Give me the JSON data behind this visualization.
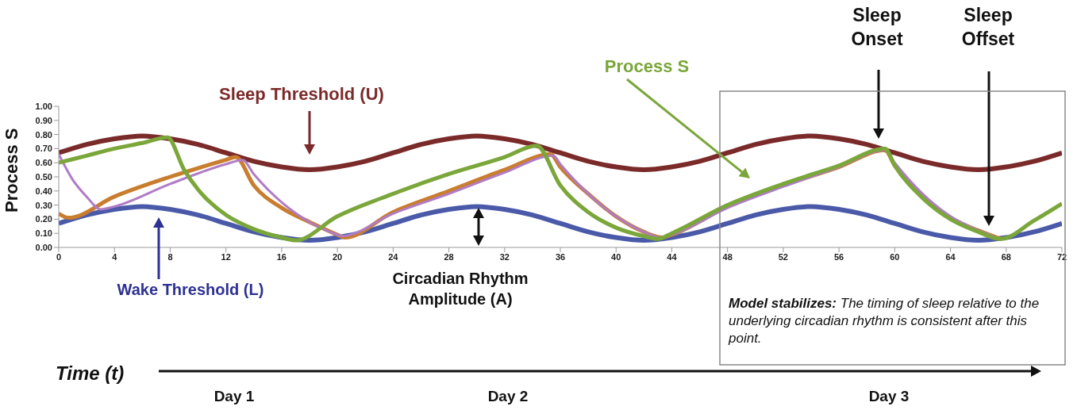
{
  "chart_data": {
    "type": "line",
    "ylabel": "Process S",
    "x": [
      0,
      2,
      4,
      6,
      8,
      10,
      12,
      14,
      16,
      18,
      20,
      22,
      24,
      26,
      28,
      30,
      32,
      34,
      36,
      38,
      40,
      42,
      44,
      46,
      48,
      50,
      52,
      54,
      56,
      58,
      60,
      62,
      64,
      66,
      68,
      70,
      72
    ],
    "series": [
      {
        "color": "#7b2a2a",
        "values": [
          0.67,
          0.73,
          0.77,
          0.79,
          0.77,
          0.73,
          0.67,
          0.61,
          0.57,
          0.55,
          0.57,
          0.61,
          0.67,
          0.73,
          0.77,
          0.79,
          0.77,
          0.73,
          0.67,
          0.61,
          0.57,
          0.55,
          0.57,
          0.61,
          0.67,
          0.73,
          0.77,
          0.79,
          0.77,
          0.73,
          0.67,
          0.61,
          0.57,
          0.55,
          0.57,
          0.61,
          0.67
        ]
      },
      {
        "color": "#4a5aa8",
        "values": [
          0.17,
          0.23,
          0.27,
          0.29,
          0.27,
          0.23,
          0.17,
          0.11,
          0.07,
          0.05,
          0.07,
          0.11,
          0.17,
          0.23,
          0.27,
          0.29,
          0.27,
          0.23,
          0.17,
          0.11,
          0.07,
          0.05,
          0.07,
          0.11,
          0.17,
          0.23,
          0.27,
          0.29,
          0.27,
          0.23,
          0.17,
          0.11,
          0.07,
          0.05,
          0.07,
          0.11,
          0.17
        ]
      },
      {
        "color": "#c97d2e",
        "x": [
          0,
          0.7,
          4,
          8,
          12,
          12.7,
          14,
          16,
          18,
          20,
          20.5,
          24,
          28,
          32,
          35.3,
          36,
          38,
          40,
          42,
          43.3,
          44,
          48,
          52,
          56,
          59.3,
          60,
          62,
          64,
          66,
          67.6
        ],
        "values": [
          0.24,
          0.21,
          0.36,
          0.5,
          0.62,
          0.64,
          0.44,
          0.28,
          0.18,
          0.09,
          0.07,
          0.25,
          0.4,
          0.55,
          0.66,
          0.57,
          0.38,
          0.22,
          0.11,
          0.07,
          0.09,
          0.29,
          0.44,
          0.57,
          0.69,
          0.58,
          0.36,
          0.21,
          0.12,
          0.06
        ]
      },
      {
        "color": "#b07cc6",
        "x": [
          0,
          1,
          2,
          3,
          4,
          8,
          12,
          13.2,
          14,
          16,
          18,
          20,
          20.3,
          24,
          28,
          32,
          35.5,
          36,
          38,
          40,
          42,
          43.2,
          44,
          48,
          52,
          56,
          59.3,
          60,
          62,
          64,
          66,
          67.6
        ],
        "values": [
          0.66,
          0.48,
          0.36,
          0.27,
          0.29,
          0.45,
          0.59,
          0.62,
          0.52,
          0.32,
          0.18,
          0.09,
          0.08,
          0.24,
          0.38,
          0.53,
          0.65,
          0.59,
          0.38,
          0.22,
          0.11,
          0.07,
          0.09,
          0.28,
          0.43,
          0.57,
          0.69,
          0.6,
          0.38,
          0.22,
          0.12,
          0.06
        ]
      },
      {
        "color": "#7aa63a",
        "x": [
          0,
          2,
          4,
          6,
          7.8,
          9,
          10,
          12,
          14,
          16,
          17,
          20,
          24,
          28,
          32,
          34.3,
          36,
          38,
          40,
          42,
          43,
          44,
          48,
          52,
          56,
          59.3,
          60,
          62,
          64,
          66,
          67.6,
          70,
          72
        ],
        "values": [
          0.6,
          0.65,
          0.7,
          0.74,
          0.78,
          0.55,
          0.41,
          0.23,
          0.13,
          0.07,
          0.05,
          0.22,
          0.38,
          0.52,
          0.64,
          0.72,
          0.44,
          0.25,
          0.14,
          0.08,
          0.06,
          0.1,
          0.3,
          0.45,
          0.58,
          0.7,
          0.58,
          0.35,
          0.2,
          0.11,
          0.06,
          0.19,
          0.31
        ]
      }
    ],
    "xlim": [
      0,
      72
    ],
    "xticks": [
      0,
      4,
      8,
      12,
      16,
      20,
      24,
      28,
      32,
      36,
      40,
      44,
      48,
      52,
      56,
      60,
      64,
      68,
      72
    ],
    "ylim": [
      0,
      1
    ],
    "yticks": [
      {
        "value": 0,
        "label": "0.00"
      },
      {
        "value": 0.1,
        "label": "0.10"
      },
      {
        "value": 0.2,
        "label": "0.20"
      },
      {
        "value": 0.3,
        "label": "0.30"
      },
      {
        "value": 0.4,
        "label": "0.40"
      },
      {
        "value": 0.5,
        "label": "0.50"
      },
      {
        "value": 0.6,
        "label": "0.60"
      },
      {
        "value": 0.7,
        "label": "0.70"
      },
      {
        "value": 0.8,
        "label": "0.80"
      },
      {
        "value": 0.9,
        "label": "0.90"
      },
      {
        "value": 1,
        "label": "1.00"
      }
    ],
    "annotations": [
      "Sleep Threshold (U)",
      "Wake Threshold (L)",
      "Process S",
      "Circadian Rhythm Amplitude (A)",
      "Sleep Onset",
      "Sleep Offset",
      "Model stabilizes: The timing of sleep relative to the underlying circadian rhythm is consistent after this point.",
      "Day 1",
      "Day 2",
      "Day 3",
      "Time (t)"
    ],
    "grid": false,
    "legend": false,
    "marker": "none",
    "line_style": "solid"
  }
}
